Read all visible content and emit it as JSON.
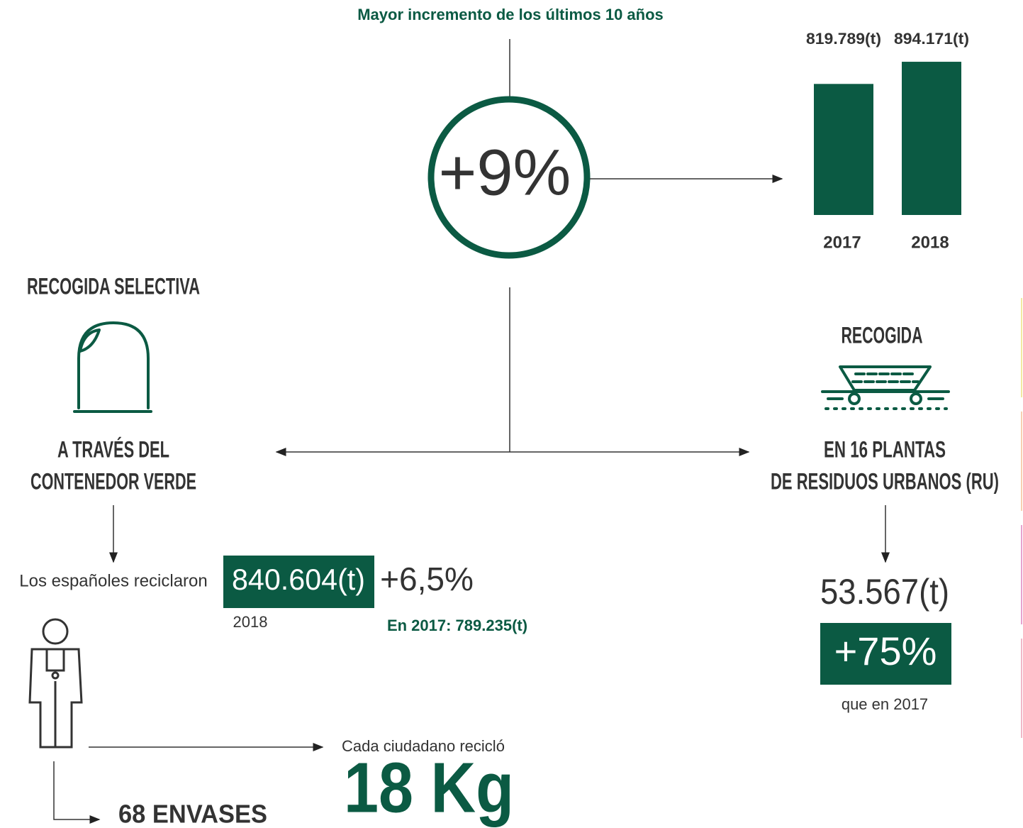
{
  "header": {
    "subtitle": "Mayor incremento de los últimos 10 años",
    "increase": "+9%"
  },
  "chart_data": {
    "type": "bar",
    "categories": [
      "2017",
      "2018"
    ],
    "values": [
      819789,
      894171
    ],
    "value_labels": [
      "819.789(t)",
      "894.171(t)"
    ],
    "color": "#0b5a43",
    "ylim": [
      380000,
      900000
    ]
  },
  "left": {
    "title": "RECOGIDA SELECTIVA",
    "line1": "A TRAVÉS DEL",
    "line2": "CONTENEDOR VERDE",
    "intro": "Los españoles reciclaron",
    "amount": "840.604(t)",
    "year": "2018",
    "change": "+6,5%",
    "previous": "En 2017: 789.235(t)",
    "per_citizen_label": "Cada ciudadano recicló",
    "per_citizen": "18 Kg",
    "packages": "68 ENVASES"
  },
  "right": {
    "title": "RECOGIDA",
    "line1": "EN 16 PLANTAS",
    "line2": "DE RESIDUOS URBANOS (RU)",
    "amount": "53.567(t)",
    "change": "+75%",
    "note": "que en 2017"
  }
}
